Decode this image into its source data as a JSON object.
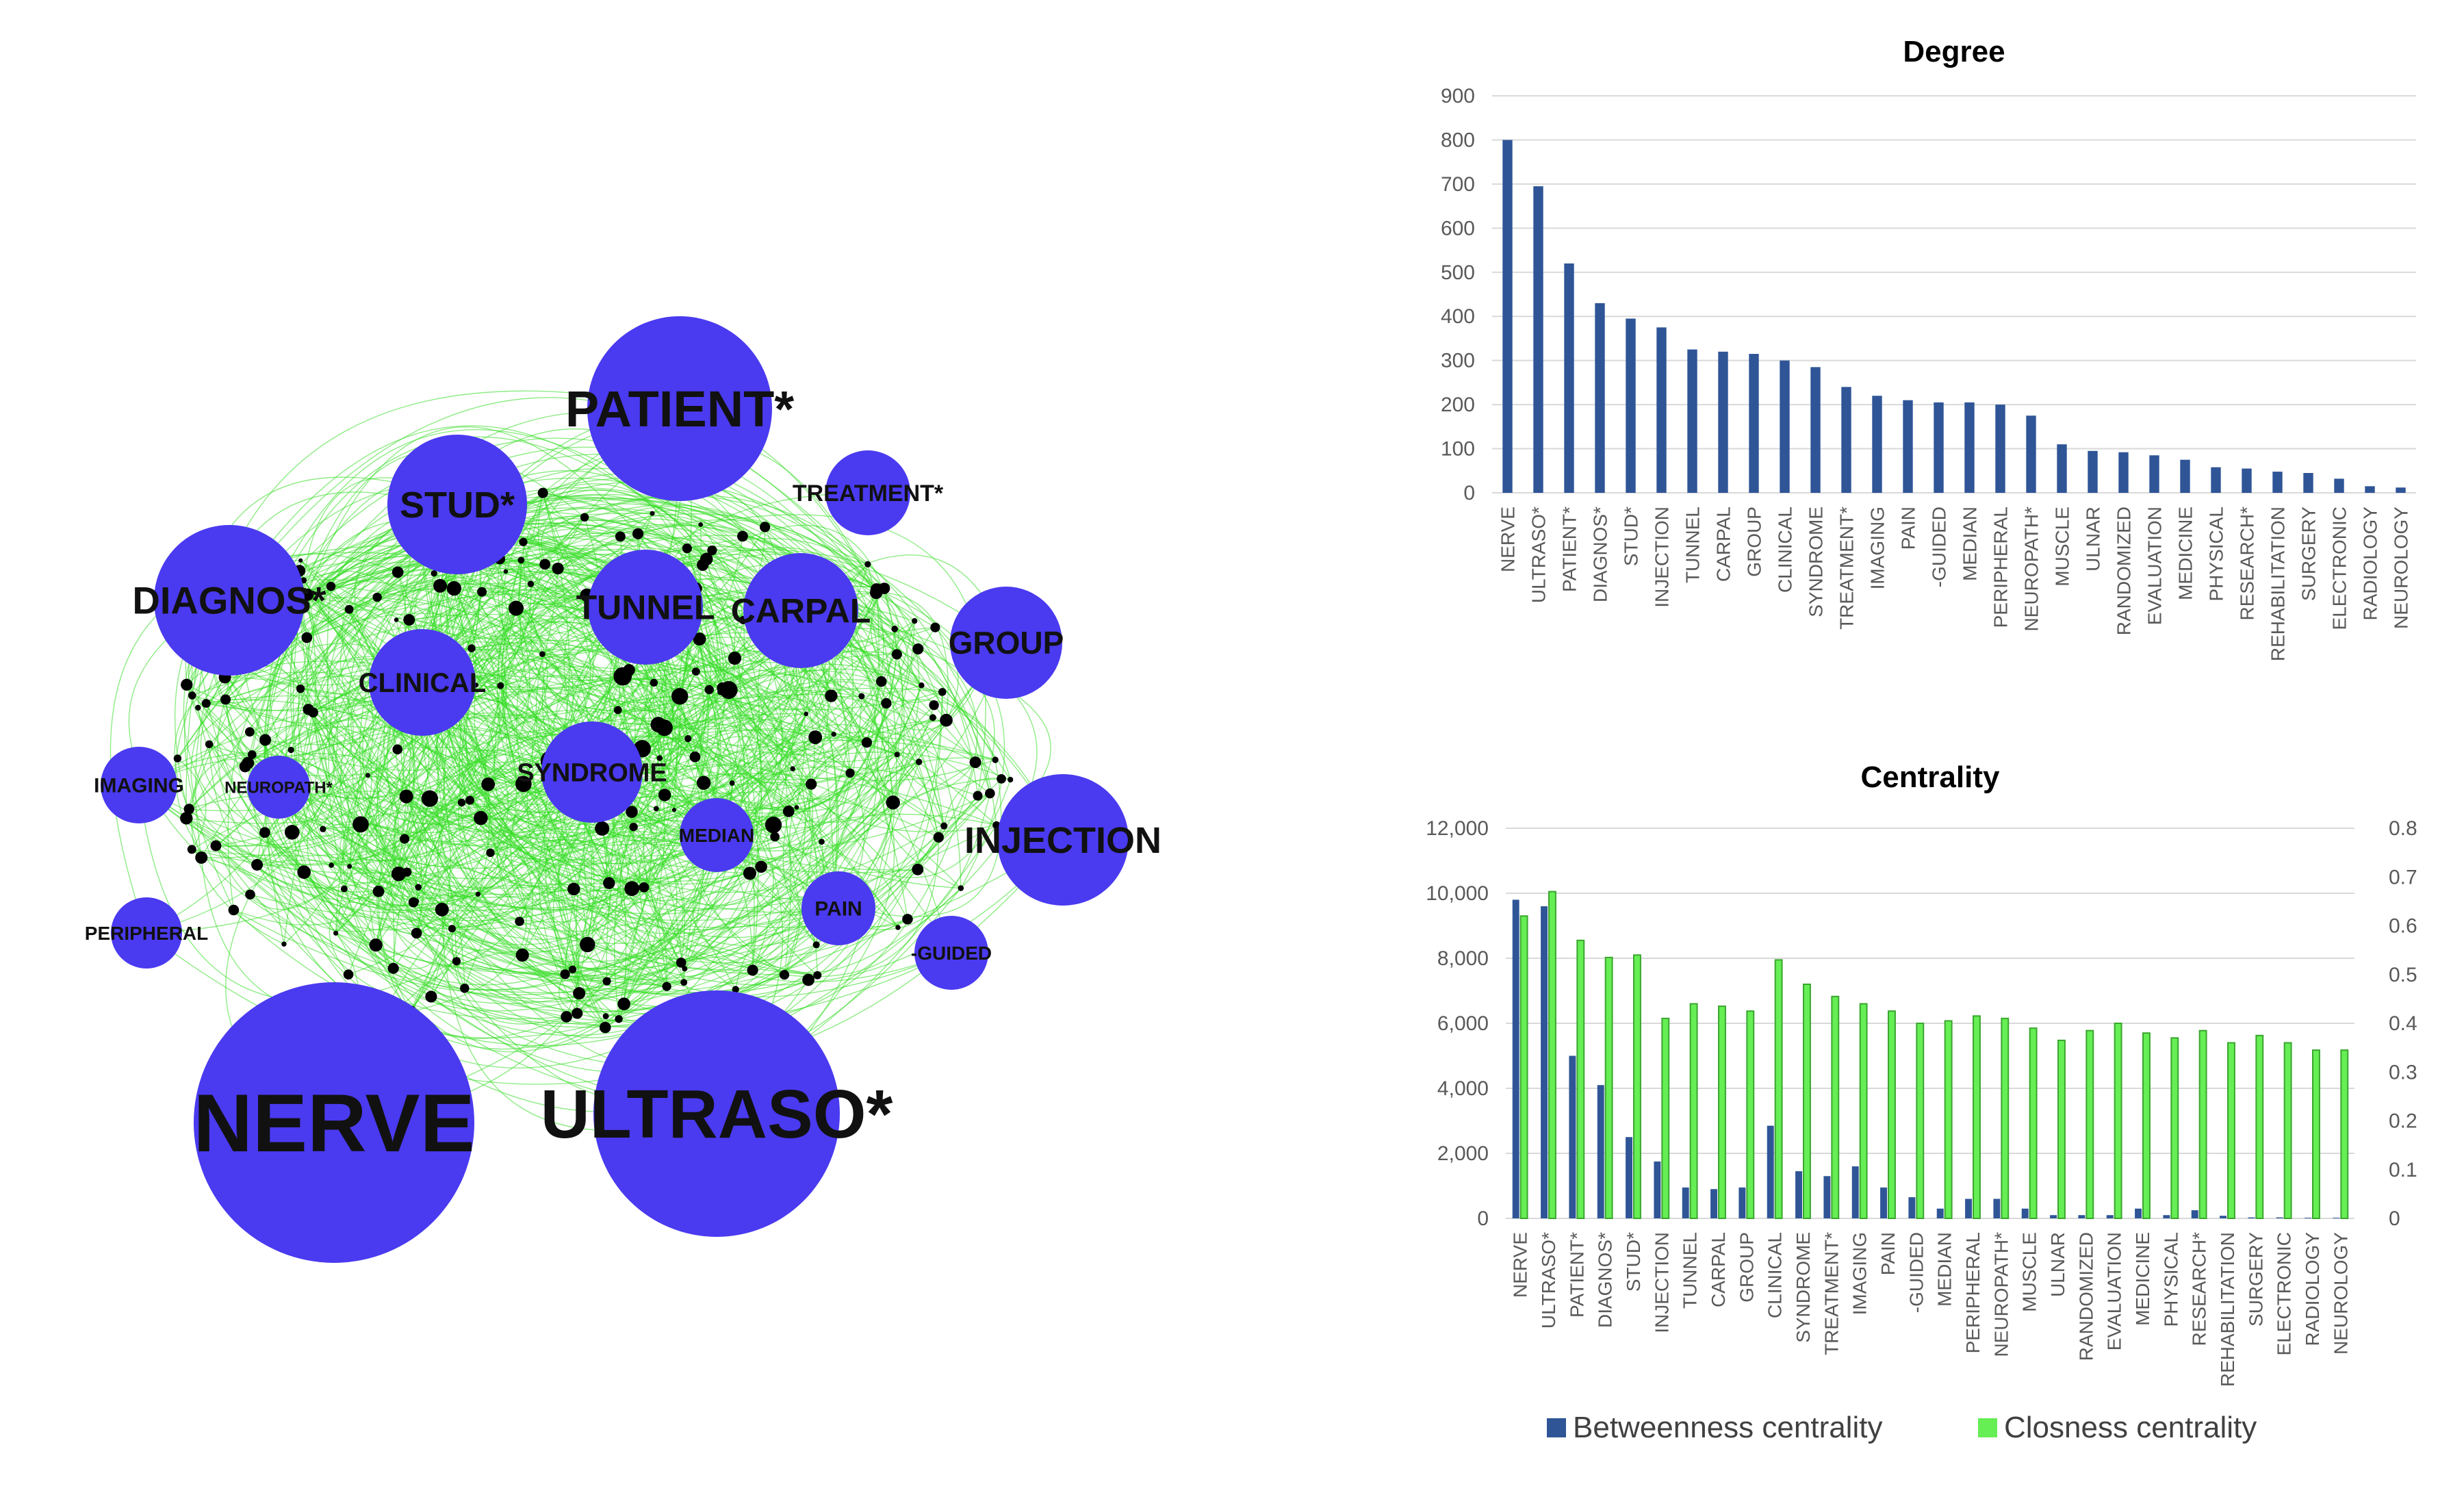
{
  "network": {
    "nodes": [
      {
        "label": "NERVE",
        "size": 1.0
      },
      {
        "label": "ULTRASO*",
        "size": 0.9
      },
      {
        "label": "PATIENT*",
        "size": 0.68
      },
      {
        "label": "DIAGNOS*",
        "size": 0.55
      },
      {
        "label": "STUD*",
        "size": 0.51
      },
      {
        "label": "INJECTION",
        "size": 0.48
      },
      {
        "label": "TUNNEL",
        "size": 0.42
      },
      {
        "label": "CARPAL",
        "size": 0.42
      },
      {
        "label": "GROUP",
        "size": 0.41
      },
      {
        "label": "CLINICAL",
        "size": 0.39
      },
      {
        "label": "SYNDROME",
        "size": 0.37
      },
      {
        "label": "TREATMENT*",
        "size": 0.31
      },
      {
        "label": "IMAGING",
        "size": 0.28
      },
      {
        "label": "PAIN",
        "size": 0.27
      },
      {
        "label": "-GUIDED",
        "size": 0.27
      },
      {
        "label": "MEDIAN",
        "size": 0.27
      },
      {
        "label": "PERIPHERAL",
        "size": 0.26
      },
      {
        "label": "NEUROPATH*",
        "size": 0.23
      }
    ]
  },
  "chart_data": [
    {
      "type": "bar",
      "title": "Degree",
      "categories": [
        "NERVE",
        "ULTRASO*",
        "PATIENT*",
        "DIAGNOS*",
        "STUD*",
        "INJECTION",
        "TUNNEL",
        "CARPAL",
        "GROUP",
        "CLINICAL",
        "SYNDROME",
        "TREATMENT*",
        "IMAGING",
        "PAIN",
        "-GUIDED",
        "MEDIAN",
        "PERIPHERAL",
        "NEUROPATH*",
        "MUSCLE",
        "ULNAR",
        "RANDOMIZED",
        "EVALUATION",
        "MEDICINE",
        "PHYSICAL",
        "RESEARCH*",
        "REHABILITATION",
        "SURGERY",
        "ELECTRONIC",
        "RADIOLOGY",
        "NEUROLOGY"
      ],
      "values": [
        800,
        695,
        520,
        430,
        395,
        375,
        325,
        320,
        315,
        300,
        285,
        240,
        220,
        210,
        205,
        205,
        200,
        175,
        110,
        95,
        92,
        85,
        75,
        58,
        55,
        48,
        45,
        32,
        15,
        12
      ],
      "ylim": [
        0,
        900
      ],
      "yticks": [
        "0",
        "100",
        "200",
        "300",
        "400",
        "500",
        "600",
        "700",
        "800",
        "900"
      ],
      "color": "#2F5597",
      "xlabel": "",
      "ylabel": "",
      "grid": true
    },
    {
      "type": "bar",
      "title": "Centrality",
      "categories": [
        "NERVE",
        "ULTRASO*",
        "PATIENT*",
        "DIAGNOS*",
        "STUD*",
        "INJECTION",
        "TUNNEL",
        "CARPAL",
        "GROUP",
        "CLINICAL",
        "SYNDROME",
        "TREATMENT*",
        "IMAGING",
        "PAIN",
        "-GUIDED",
        "MEDIAN",
        "PERIPHERAL",
        "NEUROPATH*",
        "MUSCLE",
        "ULNAR",
        "RANDOMIZED",
        "EVALUATION",
        "MEDICINE",
        "PHYSICAL",
        "RESEARCH*",
        "REHABILITATION",
        "SURGERY",
        "ELECTRONIC",
        "RADIOLOGY",
        "NEUROLOGY"
      ],
      "series": [
        {
          "name": "Betweenness centrality",
          "axis": "left",
          "color": "#2F5597",
          "values": [
            9800,
            9600,
            5000,
            4100,
            2500,
            1750,
            950,
            900,
            950,
            2850,
            1450,
            1300,
            1600,
            950,
            650,
            300,
            600,
            600,
            300,
            100,
            100,
            100,
            300,
            100,
            250,
            80,
            30,
            30,
            20,
            20
          ]
        },
        {
          "name": "Closness centrality",
          "axis": "right",
          "color": "#66EE55",
          "values": [
            0.62,
            0.67,
            0.57,
            0.535,
            0.54,
            0.41,
            0.44,
            0.435,
            0.425,
            0.53,
            0.48,
            0.455,
            0.44,
            0.425,
            0.4,
            0.405,
            0.415,
            0.41,
            0.39,
            0.365,
            0.385,
            0.4,
            0.38,
            0.37,
            0.385,
            0.36,
            0.375,
            0.36,
            0.345,
            0.345
          ]
        }
      ],
      "ylim_left": [
        0,
        12000
      ],
      "ylim_right": [
        0,
        0.8
      ],
      "yticks_left": [
        "0",
        "2,000",
        "4,000",
        "6,000",
        "8,000",
        "10,000",
        "12,000"
      ],
      "yticks_right": [
        "0",
        "0.1",
        "0.2",
        "0.3",
        "0.4",
        "0.5",
        "0.6",
        "0.7",
        "0.8"
      ],
      "legend": [
        "Betweenness centrality",
        "Closness centrality"
      ],
      "legend_position": "bottom",
      "grid": true
    }
  ]
}
